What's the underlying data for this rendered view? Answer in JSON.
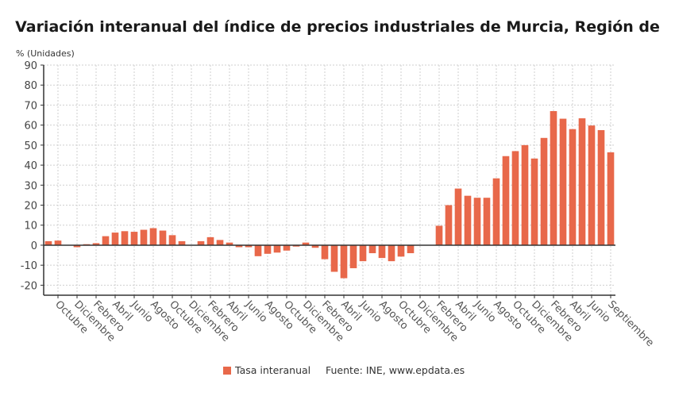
{
  "chart_data": {
    "type": "bar",
    "title": "Variación interanual del índice de precios industriales de Murcia, Región de",
    "ylabel": "% (Unidades)",
    "xlabel": "",
    "ylim": [
      -25,
      90
    ],
    "yticks": [
      90,
      80,
      70,
      60,
      50,
      40,
      30,
      20,
      10,
      0,
      -10,
      -20
    ],
    "grid": true,
    "legend_position": "bottom-center",
    "source": "Fuente: INE, www.epdata.es",
    "color": "#e8684a",
    "x_tick_labels": [
      "Octubre",
      "Diciembre",
      "Febrero",
      "Abril",
      "Junio",
      "Agosto",
      "Octubre",
      "Diciembre",
      "Febrero",
      "Abril",
      "Junio",
      "Agosto",
      "Octubre",
      "Diciembre",
      "Febrero",
      "Abril",
      "Junio",
      "Agosto",
      "Octubre",
      "Diciembre",
      "Febrero",
      "Abril",
      "Junio",
      "Agosto",
      "Octubre",
      "Diciembre",
      "Febrero",
      "Abril",
      "Junio",
      "Septiembre"
    ],
    "x_tick_indices": [
      1,
      3,
      5,
      7,
      9,
      11,
      13,
      15,
      17,
      19,
      21,
      23,
      25,
      27,
      29,
      31,
      33,
      35,
      37,
      39,
      41,
      43,
      45,
      47,
      49,
      51,
      53,
      55,
      57,
      59
    ],
    "series": [
      {
        "name": "Tasa interanual",
        "values": [
          2,
          2.3,
          0,
          -1,
          0.5,
          1,
          4.5,
          6.3,
          7,
          6.7,
          7.7,
          8.5,
          7.3,
          5,
          2,
          0,
          2,
          4,
          2.6,
          1.3,
          -1,
          -1,
          -5.5,
          -4.3,
          -3.7,
          -2.7,
          -0.7,
          1.3,
          -1.3,
          -7,
          -13.3,
          -16.5,
          -11.5,
          -8,
          -4,
          -6.4,
          -8,
          -5.7,
          -4,
          0,
          0,
          9.7,
          20,
          28.3,
          24.7,
          23.7,
          23.7,
          33.4,
          44.5,
          47,
          50,
          43.3,
          53.6,
          67,
          63.2,
          58,
          63.4,
          59.8,
          57.5,
          46.4
        ]
      }
    ]
  }
}
